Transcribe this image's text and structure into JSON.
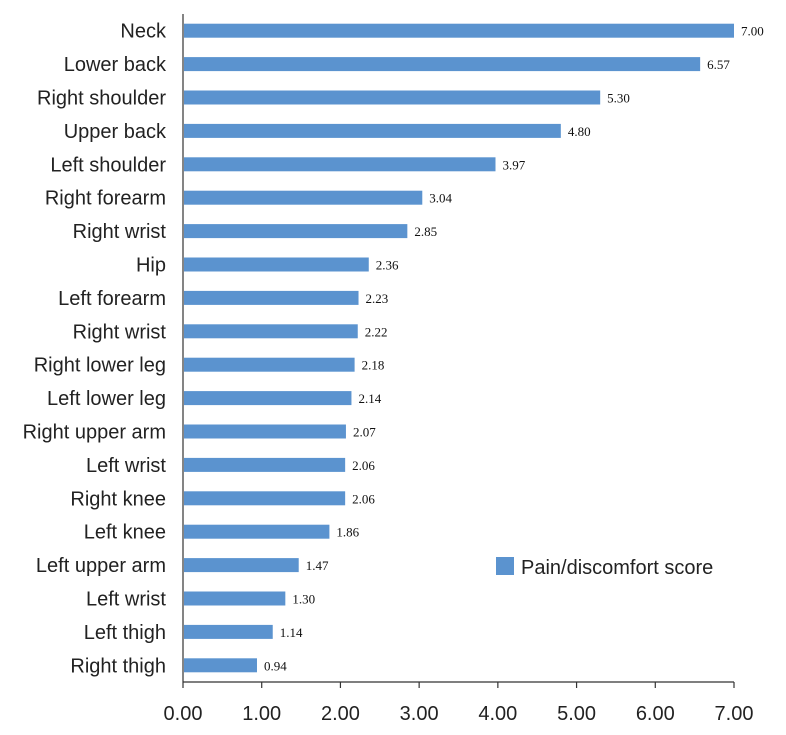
{
  "chart_data": {
    "type": "bar",
    "orientation": "horizontal",
    "categories": [
      "Neck",
      "Lower back",
      "Right shoulder",
      "Upper back",
      "Left shoulder",
      "Right forearm",
      "Right wrist",
      "Hip",
      "Left forearm",
      "Right wrist",
      "Right lower leg",
      "Left lower leg",
      "Right upper arm",
      "Left wrist",
      "Right knee",
      "Left knee",
      "Left upper arm",
      "Left wrist",
      "Left thigh",
      "Right thigh"
    ],
    "series": [
      {
        "name": "Pain/discomfort score",
        "values": [
          7.0,
          6.57,
          5.3,
          4.8,
          3.97,
          3.04,
          2.85,
          2.36,
          2.23,
          2.22,
          2.18,
          2.14,
          2.07,
          2.06,
          2.06,
          1.86,
          1.47,
          1.3,
          1.14,
          0.94
        ],
        "data_labels": [
          "7.00",
          "6.57",
          "5.30",
          "4.80",
          "3.97",
          "3.04",
          "2.85",
          "2.36",
          "2.23",
          "2.22",
          "2.18",
          "2.14",
          "2.07",
          "2.06",
          "2.06",
          "1.86",
          "1.47",
          "1.30",
          "1.14",
          "0.94"
        ],
        "color": "#5b93cf"
      }
    ],
    "x_ticks": [
      "0.00",
      "1.00",
      "2.00",
      "3.00",
      "4.00",
      "5.00",
      "6.00",
      "7.00"
    ],
    "xlim": [
      0,
      7
    ],
    "title": "",
    "xlabel": "",
    "ylabel": "",
    "grid": false,
    "legend_position": "lower-right"
  },
  "legend": {
    "label": "Pain/discomfort score",
    "color": "#5b93cf"
  }
}
